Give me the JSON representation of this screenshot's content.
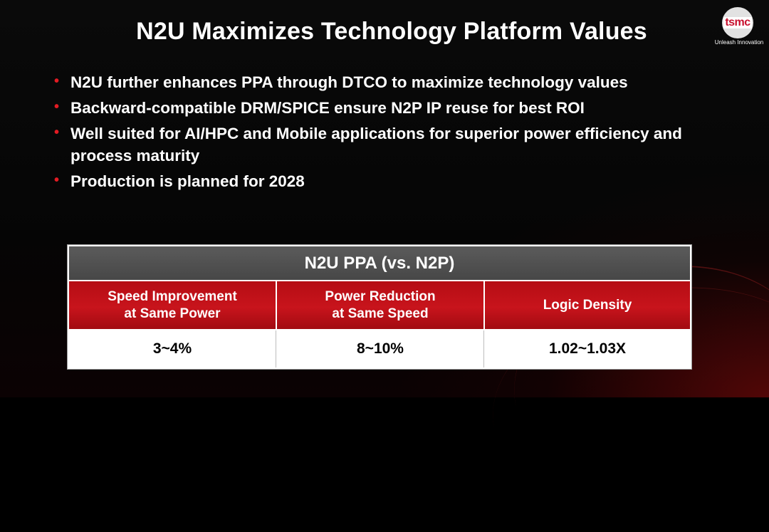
{
  "slide": {
    "title": "N2U Maximizes Technology Platform Values",
    "logo": {
      "wordmark": "tsmc",
      "tagline": "Unleash Innovation"
    },
    "bullets": [
      "N2U further enhances PPA through DTCO to maximize technology values",
      "Backward-compatible DRM/SPICE ensure N2P IP reuse for best ROI",
      "Well suited for AI/HPC and Mobile applications for superior power efficiency and process maturity",
      "Production is planned for 2028"
    ]
  },
  "ppa_table": {
    "title": "N2U PPA (vs. N2P)",
    "columns": [
      {
        "header": [
          "Speed Improvement",
          "at Same Power"
        ],
        "value": "3~4%"
      },
      {
        "header": [
          "Power Reduction",
          "at Same Speed"
        ],
        "value": "8~10%"
      },
      {
        "header": [
          "Logic Density"
        ],
        "value": "1.02~1.03X"
      }
    ]
  },
  "colors": {
    "accent_red": "#c8141c",
    "bullet_red": "#e31b23",
    "table_header_gray": "#505050",
    "background": "#000000"
  }
}
